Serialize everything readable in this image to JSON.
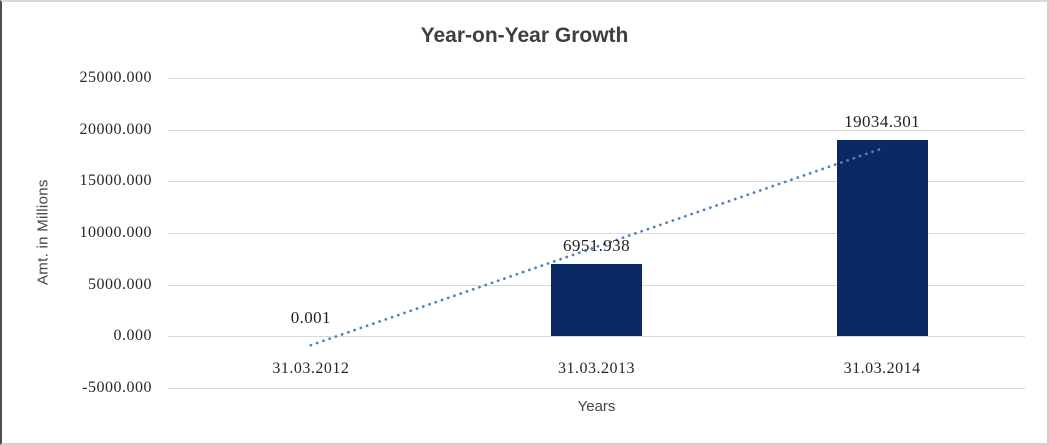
{
  "chart_data": {
    "type": "bar",
    "title": "Year-on-Year Growth",
    "xlabel": "Years",
    "ylabel": "Amt. in Millions",
    "categories": [
      "31.03.2012",
      "31.03.2013",
      "31.03.2014"
    ],
    "values": [
      0.001,
      6951.938,
      19034.301
    ],
    "data_labels": [
      "0.001",
      "6951.938",
      "19034.301"
    ],
    "ylim": [
      -5000,
      25000
    ],
    "ytick_step": 5000,
    "ytick_labels": [
      "25000.000",
      "20000.000",
      "15000.000",
      "10000.000",
      "5000.000",
      "0.000",
      "-5000.000"
    ],
    "grid": "horizontal",
    "legend": "none",
    "trendline": {
      "type": "linear",
      "style": "dotted"
    },
    "colors": {
      "bar": "#0b2a63",
      "gridline": "#d9d9d9",
      "trendline": "#4e82c3",
      "title_text": "#3f3f3f",
      "axis_title_text": "#454545",
      "number_text": "#262626"
    }
  }
}
